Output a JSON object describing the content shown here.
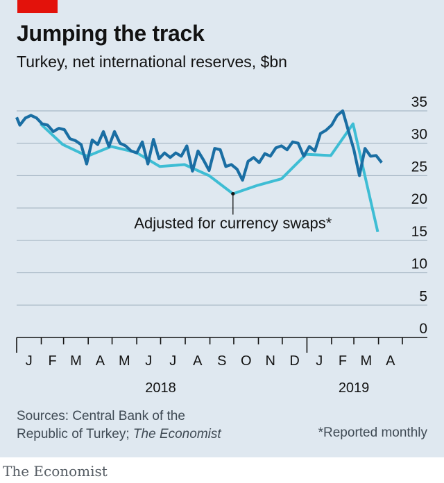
{
  "header": {
    "title": "Jumping the track",
    "subtitle": "Turkey, net international reserves, $bn"
  },
  "source": {
    "line1": "Sources: Central Bank of the",
    "line2_plain": "Republic of Turkey; ",
    "line2_italic": "The Economist"
  },
  "footnote": "*Reported monthly",
  "brand": "The Economist",
  "colors": {
    "background": "#dfe8f0",
    "series_main": "#1a6ea3",
    "series_adjusted": "#3ebdd4",
    "accent_red": "#e3120b",
    "grid": "#a8b8c6"
  },
  "chart_data": {
    "type": "line",
    "ylim": [
      0,
      35
    ],
    "y_ticks": [
      0,
      5,
      10,
      15,
      20,
      25,
      30,
      35
    ],
    "x_range": [
      "2018-01-01",
      "2019-05-01"
    ],
    "x_month_labels": [
      "J",
      "F",
      "M",
      "A",
      "M",
      "J",
      "J",
      "A",
      "S",
      "O",
      "N",
      "D",
      "J",
      "F",
      "M",
      "A"
    ],
    "x_year_labels": [
      "2018",
      "2019"
    ],
    "annotation": {
      "text": "Adjusted for currency swaps*",
      "x": "2018-09-30",
      "y": 22.2
    },
    "series": [
      {
        "key": "main",
        "color": "#1a6ea3",
        "points": [
          [
            "2018-01-01",
            34.0
          ],
          [
            "2018-01-05",
            32.8
          ],
          [
            "2018-01-12",
            33.9
          ],
          [
            "2018-01-19",
            34.3
          ],
          [
            "2018-01-26",
            33.9
          ],
          [
            "2018-02-02",
            33.0
          ],
          [
            "2018-02-09",
            32.8
          ],
          [
            "2018-02-16",
            31.8
          ],
          [
            "2018-02-23",
            32.3
          ],
          [
            "2018-03-02",
            32.1
          ],
          [
            "2018-03-09",
            30.7
          ],
          [
            "2018-03-16",
            30.4
          ],
          [
            "2018-03-23",
            29.8
          ],
          [
            "2018-03-30",
            26.8
          ],
          [
            "2018-04-06",
            30.5
          ],
          [
            "2018-04-13",
            29.8
          ],
          [
            "2018-04-20",
            31.8
          ],
          [
            "2018-04-27",
            29.5
          ],
          [
            "2018-05-04",
            31.8
          ],
          [
            "2018-05-11",
            30.0
          ],
          [
            "2018-05-18",
            29.6
          ],
          [
            "2018-05-25",
            28.8
          ],
          [
            "2018-06-01",
            28.5
          ],
          [
            "2018-06-08",
            30.2
          ],
          [
            "2018-06-15",
            26.8
          ],
          [
            "2018-06-22",
            30.6
          ],
          [
            "2018-06-29",
            27.6
          ],
          [
            "2018-07-06",
            28.5
          ],
          [
            "2018-07-13",
            27.8
          ],
          [
            "2018-07-20",
            28.5
          ],
          [
            "2018-07-27",
            28.0
          ],
          [
            "2018-08-03",
            29.6
          ],
          [
            "2018-08-10",
            25.7
          ],
          [
            "2018-08-17",
            28.8
          ],
          [
            "2018-08-24",
            27.4
          ],
          [
            "2018-08-31",
            25.8
          ],
          [
            "2018-09-07",
            29.2
          ],
          [
            "2018-09-14",
            29.0
          ],
          [
            "2018-09-21",
            26.4
          ],
          [
            "2018-09-28",
            26.7
          ],
          [
            "2018-10-05",
            26.0
          ],
          [
            "2018-10-12",
            24.3
          ],
          [
            "2018-10-19",
            27.2
          ],
          [
            "2018-10-26",
            27.8
          ],
          [
            "2018-11-02",
            27.0
          ],
          [
            "2018-11-09",
            28.4
          ],
          [
            "2018-11-16",
            28.0
          ],
          [
            "2018-11-23",
            29.3
          ],
          [
            "2018-11-30",
            29.6
          ],
          [
            "2018-12-07",
            29.0
          ],
          [
            "2018-12-14",
            30.2
          ],
          [
            "2018-12-21",
            30.0
          ],
          [
            "2018-12-28",
            28.0
          ],
          [
            "2019-01-04",
            29.5
          ],
          [
            "2019-01-11",
            28.8
          ],
          [
            "2019-01-18",
            31.5
          ],
          [
            "2019-01-25",
            32.0
          ],
          [
            "2019-02-01",
            32.8
          ],
          [
            "2019-02-08",
            34.3
          ],
          [
            "2019-02-15",
            35.0
          ],
          [
            "2019-02-22",
            32.0
          ],
          [
            "2019-03-01",
            29.0
          ],
          [
            "2019-03-08",
            25.0
          ],
          [
            "2019-03-15",
            29.2
          ],
          [
            "2019-03-22",
            28.0
          ],
          [
            "2019-03-29",
            28.1
          ],
          [
            "2019-04-05",
            27.0
          ]
        ]
      },
      {
        "key": "adjusted",
        "name": "Adjusted for currency swaps*",
        "color": "#3ebdd4",
        "points": [
          [
            "2018-01-31",
            33.0
          ],
          [
            "2018-02-28",
            29.8
          ],
          [
            "2018-03-31",
            28.0
          ],
          [
            "2018-04-30",
            29.5
          ],
          [
            "2018-05-31",
            28.6
          ],
          [
            "2018-06-30",
            26.4
          ],
          [
            "2018-07-31",
            26.7
          ],
          [
            "2018-08-31",
            25.0
          ],
          [
            "2018-09-30",
            22.2
          ],
          [
            "2018-10-31",
            23.5
          ],
          [
            "2018-11-30",
            24.5
          ],
          [
            "2018-12-31",
            28.3
          ],
          [
            "2019-01-31",
            28.1
          ],
          [
            "2019-02-28",
            33.0
          ],
          [
            "2019-03-31",
            16.3
          ]
        ]
      }
    ]
  }
}
